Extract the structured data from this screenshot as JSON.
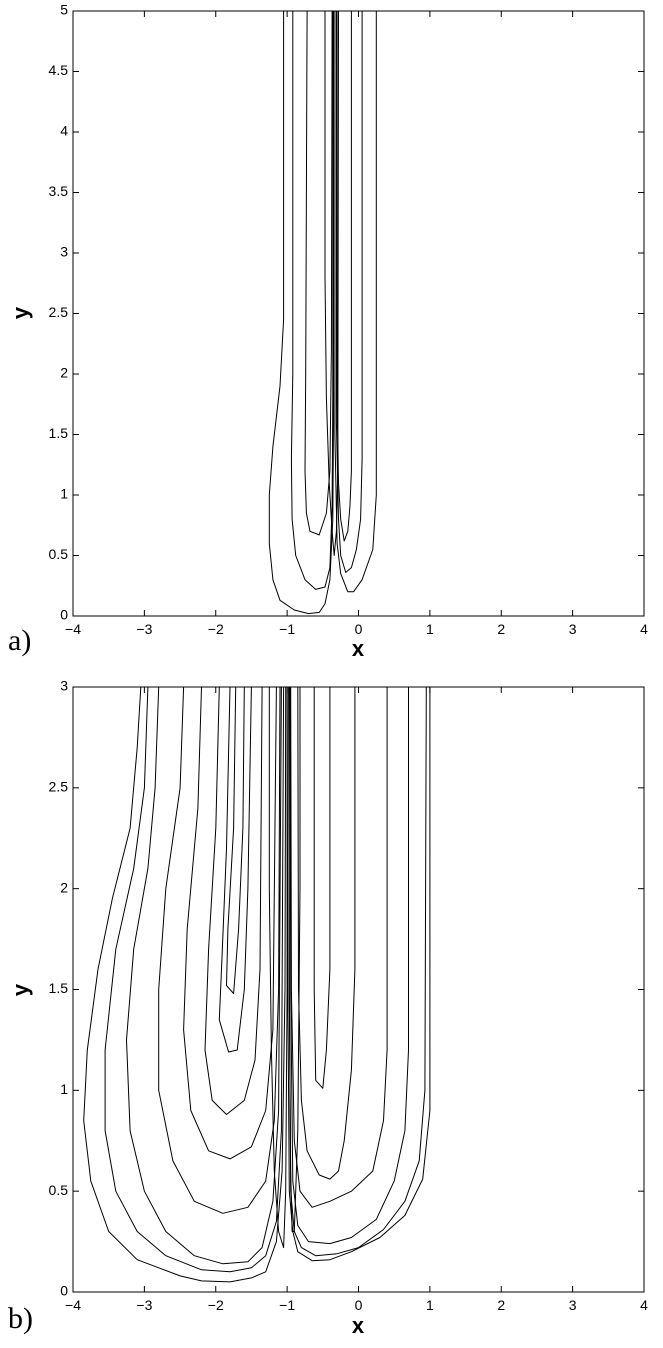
{
  "chart_data": [
    {
      "type": "contour",
      "panel_label": "a)",
      "xlabel": "x",
      "ylabel": "y",
      "xlim": [
        -4,
        4
      ],
      "ylim": [
        0,
        5
      ],
      "xticks": [
        -4,
        -3,
        -2,
        -1,
        0,
        1,
        2,
        3,
        4
      ],
      "yticks": [
        0,
        0.5,
        1,
        1.5,
        2,
        2.5,
        3,
        3.5,
        4,
        4.5,
        5
      ],
      "xtick_labels": [
        "−4",
        "−3",
        "−2",
        "−1",
        "0",
        "1",
        "2",
        "3",
        "4"
      ],
      "ytick_labels": [
        "0",
        "0.5",
        "1",
        "1.5",
        "2",
        "2.5",
        "3",
        "3.5",
        "4",
        "4.5",
        "5"
      ],
      "grid": false,
      "contours": [
        [
          [
            -1.05,
            5
          ],
          [
            -1.05,
            2.45
          ],
          [
            -1.1,
            1.9
          ],
          [
            -1.2,
            1.4
          ],
          [
            -1.25,
            1
          ],
          [
            -1.25,
            0.6
          ],
          [
            -1.2,
            0.3
          ],
          [
            -1.1,
            0.13
          ],
          [
            -0.9,
            0.05
          ],
          [
            -0.7,
            0.02
          ],
          [
            -0.55,
            0.03
          ],
          [
            -0.47,
            0.1
          ],
          [
            -0.4,
            0.3
          ],
          [
            -0.36,
            0.8
          ],
          [
            -0.35,
            1.6
          ],
          [
            -0.35,
            5
          ]
        ],
        [
          [
            -0.33,
            5
          ],
          [
            -0.33,
            1.5
          ],
          [
            -0.3,
            0.6
          ],
          [
            -0.25,
            0.35
          ],
          [
            -0.15,
            0.2
          ],
          [
            -0.07,
            0.2
          ],
          [
            0.05,
            0.3
          ],
          [
            0.2,
            0.55
          ],
          [
            0.25,
            1
          ],
          [
            0.25,
            2
          ],
          [
            0.25,
            5
          ]
        ],
        [
          [
            -0.92,
            5
          ],
          [
            -0.92,
            2
          ],
          [
            -0.94,
            1.3
          ],
          [
            -0.93,
            0.8
          ],
          [
            -0.88,
            0.5
          ],
          [
            -0.75,
            0.3
          ],
          [
            -0.6,
            0.22
          ],
          [
            -0.47,
            0.24
          ],
          [
            -0.4,
            0.4
          ],
          [
            -0.37,
            0.9
          ],
          [
            -0.36,
            1.8
          ],
          [
            -0.36,
            5
          ]
        ],
        [
          [
            -0.31,
            5
          ],
          [
            -0.31,
            1.6
          ],
          [
            -0.28,
            0.8
          ],
          [
            -0.25,
            0.5
          ],
          [
            -0.18,
            0.36
          ],
          [
            -0.1,
            0.4
          ],
          [
            -0.03,
            0.55
          ],
          [
            0.03,
            0.8
          ],
          [
            0.05,
            1.3
          ],
          [
            0.05,
            5
          ]
        ],
        [
          [
            -0.72,
            5
          ],
          [
            -0.74,
            2
          ],
          [
            -0.75,
            1.2
          ],
          [
            -0.73,
            0.85
          ],
          [
            -0.68,
            0.7
          ],
          [
            -0.55,
            0.67
          ],
          [
            -0.45,
            0.85
          ],
          [
            -0.4,
            1.2
          ],
          [
            -0.38,
            2.2
          ],
          [
            -0.37,
            5
          ]
        ],
        [
          [
            -0.3,
            5
          ],
          [
            -0.3,
            1.8
          ],
          [
            -0.28,
            1.1
          ],
          [
            -0.25,
            0.8
          ],
          [
            -0.2,
            0.62
          ],
          [
            -0.15,
            0.7
          ],
          [
            -0.12,
            0.9
          ],
          [
            -0.1,
            1.2
          ],
          [
            -0.1,
            5
          ]
        ],
        [
          [
            -0.47,
            5
          ],
          [
            -0.47,
            2.8
          ],
          [
            -0.45,
            1.8
          ],
          [
            -0.41,
            1.1
          ],
          [
            -0.37,
            0.7
          ],
          [
            -0.34,
            0.5
          ],
          [
            -0.31,
            0.7
          ],
          [
            -0.29,
            1.2
          ],
          [
            -0.28,
            5
          ]
        ]
      ]
    },
    {
      "type": "contour",
      "panel_label": "b)",
      "xlabel": "x",
      "ylabel": "y",
      "xlim": [
        -4,
        4
      ],
      "ylim": [
        0,
        3
      ],
      "xticks": [
        -4,
        -3,
        -2,
        -1,
        0,
        1,
        2,
        3,
        4
      ],
      "yticks": [
        0,
        0.5,
        1,
        1.5,
        2,
        2.5,
        3
      ],
      "xtick_labels": [
        "−4",
        "−3",
        "−2",
        "−1",
        "0",
        "1",
        "2",
        "3",
        "4"
      ],
      "ytick_labels": [
        "0",
        "0.5",
        "1",
        "1.5",
        "2",
        "2.5",
        "3"
      ],
      "grid": false,
      "contours": [
        [
          [
            -3.05,
            3
          ],
          [
            -3.1,
            2.7
          ],
          [
            -3.2,
            2.3
          ],
          [
            -3.45,
            1.95
          ],
          [
            -3.65,
            1.6
          ],
          [
            -3.8,
            1.2
          ],
          [
            -3.85,
            0.85
          ],
          [
            -3.75,
            0.55
          ],
          [
            -3.5,
            0.3
          ],
          [
            -3.1,
            0.16
          ],
          [
            -2.8,
            0.12
          ],
          [
            -2.5,
            0.08
          ],
          [
            -2.2,
            0.055
          ],
          [
            -1.8,
            0.05
          ],
          [
            -1.5,
            0.07
          ],
          [
            -1.3,
            0.1
          ],
          [
            -1.15,
            0.25
          ],
          [
            -1.07,
            0.6
          ],
          [
            -1.03,
            1.5
          ],
          [
            -1.02,
            3
          ]
        ],
        [
          [
            -1.0,
            3
          ],
          [
            -0.99,
            1.5
          ],
          [
            -0.97,
            0.5
          ],
          [
            -0.92,
            0.3
          ],
          [
            -0.85,
            0.2
          ],
          [
            -0.65,
            0.155
          ],
          [
            -0.4,
            0.16
          ],
          [
            -0.1,
            0.2
          ],
          [
            0.3,
            0.27
          ],
          [
            0.65,
            0.38
          ],
          [
            0.9,
            0.56
          ],
          [
            1.0,
            0.9
          ],
          [
            1.0,
            3
          ]
        ],
        [
          [
            -2.95,
            3
          ],
          [
            -3.0,
            2.5
          ],
          [
            -3.15,
            2.1
          ],
          [
            -3.4,
            1.7
          ],
          [
            -3.55,
            1.2
          ],
          [
            -3.55,
            0.8
          ],
          [
            -3.4,
            0.5
          ],
          [
            -3.1,
            0.3
          ],
          [
            -2.7,
            0.18
          ],
          [
            -2.2,
            0.11
          ],
          [
            -1.8,
            0.1
          ],
          [
            -1.5,
            0.12
          ],
          [
            -1.3,
            0.18
          ],
          [
            -1.15,
            0.35
          ],
          [
            -1.08,
            0.8
          ],
          [
            -1.05,
            3
          ]
        ],
        [
          [
            -0.98,
            3
          ],
          [
            -0.97,
            1.5
          ],
          [
            -0.95,
            0.5
          ],
          [
            -0.9,
            0.3
          ],
          [
            -0.8,
            0.22
          ],
          [
            -0.6,
            0.18
          ],
          [
            -0.3,
            0.19
          ],
          [
            0.0,
            0.22
          ],
          [
            0.35,
            0.31
          ],
          [
            0.65,
            0.45
          ],
          [
            0.85,
            0.65
          ],
          [
            0.93,
            1.0
          ],
          [
            0.95,
            3
          ]
        ],
        [
          [
            -2.8,
            3
          ],
          [
            -2.85,
            2.5
          ],
          [
            -2.95,
            2.1
          ],
          [
            -3.15,
            1.7
          ],
          [
            -3.25,
            1.25
          ],
          [
            -3.2,
            0.8
          ],
          [
            -3.0,
            0.5
          ],
          [
            -2.7,
            0.3
          ],
          [
            -2.3,
            0.18
          ],
          [
            -1.9,
            0.14
          ],
          [
            -1.55,
            0.15
          ],
          [
            -1.35,
            0.22
          ],
          [
            -1.2,
            0.45
          ],
          [
            -1.12,
            0.9
          ],
          [
            -1.08,
            3
          ]
        ],
        [
          [
            -0.96,
            3
          ],
          [
            -0.95,
            1.5
          ],
          [
            -0.92,
            0.55
          ],
          [
            -0.85,
            0.33
          ],
          [
            -0.7,
            0.25
          ],
          [
            -0.4,
            0.24
          ],
          [
            -0.1,
            0.27
          ],
          [
            0.25,
            0.36
          ],
          [
            0.5,
            0.55
          ],
          [
            0.65,
            0.8
          ],
          [
            0.7,
            1.2
          ],
          [
            0.7,
            3
          ]
        ],
        [
          [
            -2.45,
            3
          ],
          [
            -2.5,
            2.5
          ],
          [
            -2.7,
            2.0
          ],
          [
            -2.8,
            1.5
          ],
          [
            -2.8,
            1.0
          ],
          [
            -2.6,
            0.65
          ],
          [
            -2.3,
            0.45
          ],
          [
            -1.9,
            0.39
          ],
          [
            -1.55,
            0.42
          ],
          [
            -1.3,
            0.55
          ],
          [
            -1.18,
            0.85
          ],
          [
            -1.12,
            1.5
          ],
          [
            -1.1,
            3
          ]
        ],
        [
          [
            -0.95,
            3
          ],
          [
            -0.94,
            1.5
          ],
          [
            -0.9,
            0.75
          ],
          [
            -0.82,
            0.5
          ],
          [
            -0.65,
            0.42
          ],
          [
            -0.4,
            0.45
          ],
          [
            -0.1,
            0.5
          ],
          [
            0.2,
            0.6
          ],
          [
            0.35,
            0.85
          ],
          [
            0.4,
            1.2
          ],
          [
            0.4,
            3
          ]
        ],
        [
          [
            -2.2,
            3
          ],
          [
            -2.25,
            2.4
          ],
          [
            -2.4,
            1.8
          ],
          [
            -2.45,
            1.3
          ],
          [
            -2.35,
            0.9
          ],
          [
            -2.1,
            0.7
          ],
          [
            -1.8,
            0.66
          ],
          [
            -1.5,
            0.72
          ],
          [
            -1.3,
            0.9
          ],
          [
            -1.2,
            1.3
          ],
          [
            -1.15,
            3
          ]
        ],
        [
          [
            -0.85,
            3
          ],
          [
            -0.84,
            1.5
          ],
          [
            -0.8,
            0.95
          ],
          [
            -0.72,
            0.7
          ],
          [
            -0.55,
            0.58
          ],
          [
            -0.4,
            0.56
          ],
          [
            -0.28,
            0.6
          ],
          [
            -0.2,
            0.75
          ],
          [
            -0.1,
            1.1
          ],
          [
            -0.05,
            1.6
          ],
          [
            -0.05,
            3
          ]
        ],
        [
          [
            -1.95,
            3
          ],
          [
            -2.0,
            2.3
          ],
          [
            -2.1,
            1.7
          ],
          [
            -2.15,
            1.2
          ],
          [
            -2.05,
            0.95
          ],
          [
            -1.85,
            0.88
          ],
          [
            -1.6,
            0.95
          ],
          [
            -1.45,
            1.15
          ],
          [
            -1.38,
            1.6
          ],
          [
            -1.35,
            3
          ]
        ],
        [
          [
            -0.62,
            3
          ],
          [
            -0.62,
            1.5
          ],
          [
            -0.6,
            1.05
          ],
          [
            -0.5,
            1.01
          ],
          [
            -0.45,
            1.2
          ],
          [
            -0.4,
            1.6
          ],
          [
            -0.4,
            3
          ]
        ],
        [
          [
            -1.8,
            3
          ],
          [
            -1.85,
            2.2
          ],
          [
            -1.92,
            1.6
          ],
          [
            -1.95,
            1.35
          ],
          [
            -1.82,
            1.19
          ],
          [
            -1.7,
            1.2
          ],
          [
            -1.6,
            1.5
          ],
          [
            -1.55,
            2.0
          ],
          [
            -1.5,
            3
          ]
        ],
        [
          [
            -1.72,
            3
          ],
          [
            -1.75,
            2.3
          ],
          [
            -1.83,
            1.8
          ],
          [
            -1.85,
            1.52
          ],
          [
            -1.75,
            1.48
          ],
          [
            -1.68,
            1.8
          ],
          [
            -1.62,
            2.3
          ],
          [
            -1.6,
            3
          ]
        ],
        [
          [
            -1.25,
            3
          ],
          [
            -1.25,
            2.0
          ],
          [
            -1.22,
            1.2
          ],
          [
            -1.18,
            0.6
          ],
          [
            -1.12,
            0.3
          ],
          [
            -1.05,
            0.22
          ],
          [
            -1.02,
            0.5
          ],
          [
            -1.0,
            1.5
          ],
          [
            -1.0,
            3
          ]
        ],
        [
          [
            -0.97,
            3
          ],
          [
            -0.97,
            1.5
          ],
          [
            -0.95,
            0.6
          ],
          [
            -0.93,
            0.3
          ],
          [
            -0.9,
            0.3
          ],
          [
            -0.85,
            0.8
          ],
          [
            -0.82,
            2.0
          ],
          [
            -0.82,
            3
          ]
        ]
      ]
    }
  ]
}
